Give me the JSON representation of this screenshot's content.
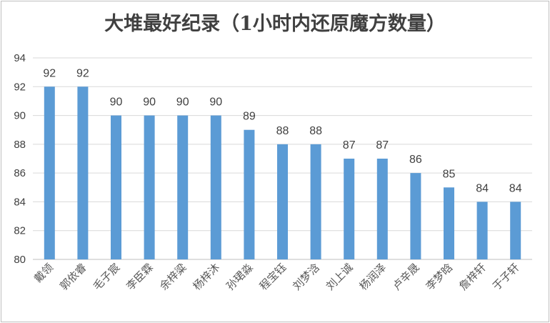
{
  "chart_data": {
    "type": "bar",
    "title": "大堆最好纪录（1小时内还原魔方数量）",
    "xlabel": "",
    "ylabel": "",
    "ylim": [
      80,
      94
    ],
    "yticks": [
      80,
      82,
      84,
      86,
      88,
      90,
      92,
      94
    ],
    "grid": true,
    "legend": "none",
    "bar_color": "#5b9bd5",
    "categories": [
      "戴领",
      "郭依睿",
      "毛子宸",
      "李臣霖",
      "余梓粱",
      "杨梓沐",
      "孙珺淼",
      "程宝钰",
      "刘梦浛",
      "刘上诚",
      "杨润泽",
      "卢辛晟",
      "李梦晗",
      "詹梓轩",
      "于子轩"
    ],
    "values": [
      92,
      92,
      90,
      90,
      90,
      90,
      89,
      88,
      88,
      87,
      87,
      86,
      85,
      84,
      84
    ]
  }
}
